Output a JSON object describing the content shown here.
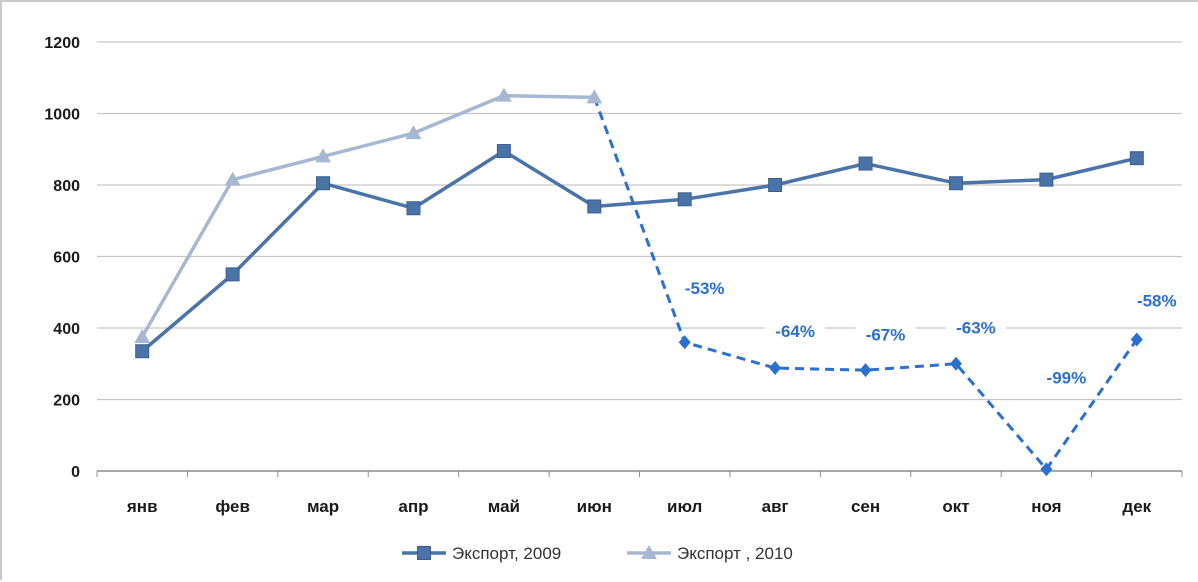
{
  "chart_data": {
    "type": "line",
    "categories": [
      "янв",
      "фев",
      "мар",
      "апр",
      "май",
      "июн",
      "июл",
      "авг",
      "сен",
      "окт",
      "ноя",
      "дек"
    ],
    "series": [
      {
        "name": "Экспорт, 2009",
        "values": [
          335,
          550,
          805,
          735,
          895,
          740,
          760,
          800,
          860,
          805,
          815,
          875
        ],
        "color": "#4a73a8",
        "marker": "square"
      },
      {
        "name": "Экспорт , 2010",
        "values": [
          375,
          815,
          880,
          945,
          1050,
          1045,
          null,
          null,
          null,
          null,
          null,
          null
        ],
        "color": "#a6b7d1",
        "marker": "triangle"
      }
    ],
    "dashed_series": {
      "values": [
        null,
        null,
        null,
        null,
        null,
        1045,
        360,
        288,
        282,
        300,
        5,
        368
      ],
      "color": "#2b6fcf",
      "marker": "diamond"
    },
    "annotations": [
      {
        "category": "июл",
        "text": "-53%",
        "y": 495
      },
      {
        "category": "авг",
        "text": "-64%",
        "y": 375
      },
      {
        "category": "сен",
        "text": "-67%",
        "y": 365
      },
      {
        "category": "окт",
        "text": "-63%",
        "y": 385
      },
      {
        "category": "ноя",
        "text": "-99%",
        "y": 245
      },
      {
        "category": "дек",
        "text": "-58%",
        "y": 460
      }
    ],
    "annotation_color": "#2b6fcf",
    "yticks": [
      0,
      200,
      400,
      600,
      800,
      1000,
      1200
    ],
    "ylim": [
      0,
      1200
    ],
    "grid": true,
    "legend_position": "bottom",
    "title": "",
    "xlabel": "",
    "ylabel": ""
  }
}
